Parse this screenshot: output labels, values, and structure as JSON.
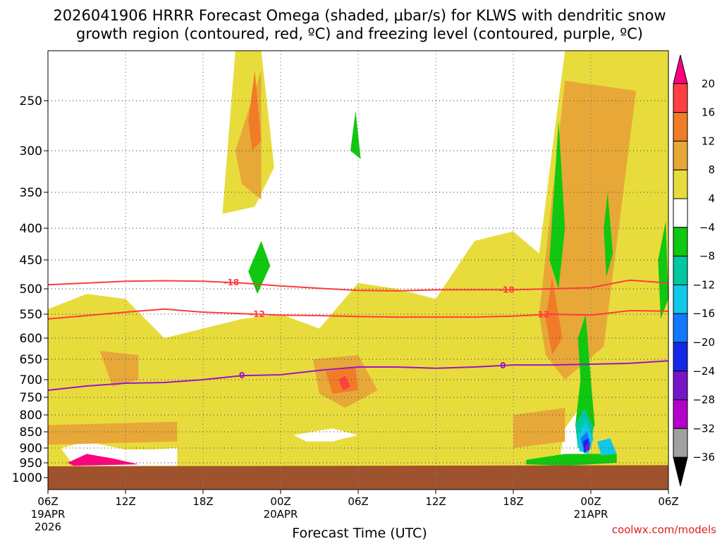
{
  "chart_data": {
    "type": "heatmap",
    "title_line1": "2026041906 HRRR Forecast Omega (shaded, μbar/s) for KLWS with dendritic snow",
    "title_line2": "growth region (contoured, red, ºC) and freezing level (contoured, purple, ºC)",
    "xlabel": "Forecast Time (UTC)",
    "watermark": "coolwx.com/models",
    "x_ticks": [
      {
        "hour": 0,
        "label": "06Z",
        "sub1": "19APR",
        "sub2": "2026"
      },
      {
        "hour": 6,
        "label": "12Z",
        "sub1": "",
        "sub2": ""
      },
      {
        "hour": 12,
        "label": "18Z",
        "sub1": "",
        "sub2": ""
      },
      {
        "hour": 18,
        "label": "00Z",
        "sub1": "20APR",
        "sub2": ""
      },
      {
        "hour": 24,
        "label": "06Z",
        "sub1": "",
        "sub2": ""
      },
      {
        "hour": 30,
        "label": "12Z",
        "sub1": "",
        "sub2": ""
      },
      {
        "hour": 36,
        "label": "18Z",
        "sub1": "",
        "sub2": ""
      },
      {
        "hour": 42,
        "label": "00Z",
        "sub1": "21APR",
        "sub2": ""
      },
      {
        "hour": 48,
        "label": "06Z",
        "sub1": "",
        "sub2": ""
      }
    ],
    "y_ticks": [
      250,
      300,
      350,
      400,
      450,
      500,
      550,
      600,
      650,
      700,
      750,
      800,
      850,
      900,
      950,
      1000
    ],
    "xlim": [
      0,
      48
    ],
    "ylim_hpa": [
      1040,
      200
    ],
    "colorbar": {
      "labels": [
        "20",
        "16",
        "12",
        "8",
        "4",
        "−4",
        "−8",
        "−12",
        "−16",
        "−20",
        "−24",
        "−28",
        "−32",
        "−36"
      ],
      "colors": [
        "#ff0080",
        "#ff4040",
        "#f07c28",
        "#e8a838",
        "#e8dc3c",
        "#ffffff",
        "#10c810",
        "#00c8a0",
        "#10c8e8",
        "#1478ff",
        "#1428e8",
        "#7814c8",
        "#b400c8",
        "#a0a0a0",
        "#000000"
      ]
    },
    "terrain": {
      "color": "#a0522d",
      "surface_hpa_start": 962,
      "surface_hpa_end": 958
    },
    "contours": [
      {
        "name": "dendritic-top",
        "label": "-18",
        "color": "#ff3c3c",
        "points": [
          [
            0,
            493
          ],
          [
            3,
            490
          ],
          [
            6,
            487
          ],
          [
            9,
            486
          ],
          [
            12,
            487
          ],
          [
            15,
            490
          ],
          [
            18,
            495
          ],
          [
            21,
            499
          ],
          [
            24,
            503
          ],
          [
            27,
            504
          ],
          [
            30,
            502
          ],
          [
            33,
            502
          ],
          [
            36,
            502
          ],
          [
            39,
            500
          ],
          [
            42,
            498
          ],
          [
            45,
            485
          ],
          [
            48,
            490
          ]
        ],
        "label_hours": [
          14.2,
          35.5
        ]
      },
      {
        "name": "dendritic-bottom",
        "label": "-12",
        "color": "#ff3c3c",
        "points": [
          [
            0,
            560
          ],
          [
            3,
            553
          ],
          [
            6,
            546
          ],
          [
            9,
            540
          ],
          [
            12,
            546
          ],
          [
            15,
            549
          ],
          [
            18,
            552
          ],
          [
            21,
            553
          ],
          [
            24,
            555
          ],
          [
            27,
            556
          ],
          [
            30,
            556
          ],
          [
            33,
            556
          ],
          [
            36,
            554
          ],
          [
            39,
            550
          ],
          [
            42,
            552
          ],
          [
            45,
            543
          ],
          [
            48,
            544
          ]
        ],
        "label_hours": [
          16.2,
          38.2
        ]
      },
      {
        "name": "freezing-level",
        "label": "0",
        "color": "#9c14c8",
        "points": [
          [
            0,
            730
          ],
          [
            3,
            718
          ],
          [
            6,
            710
          ],
          [
            9,
            708
          ],
          [
            12,
            700
          ],
          [
            15,
            690
          ],
          [
            18,
            688
          ],
          [
            21,
            677
          ],
          [
            24,
            669
          ],
          [
            27,
            669
          ],
          [
            30,
            672
          ],
          [
            33,
            669
          ],
          [
            36,
            664
          ],
          [
            39,
            664
          ],
          [
            42,
            662
          ],
          [
            45,
            660
          ],
          [
            48,
            654
          ]
        ],
        "label_hours": [
          15,
          35.2
        ]
      }
    ],
    "shaded_regions": [
      {
        "c": 4,
        "h": [
          [
            0,
            980
          ],
          [
            0,
            540
          ],
          [
            3,
            510
          ],
          [
            6,
            520
          ],
          [
            9,
            600
          ],
          [
            12,
            580
          ],
          [
            15,
            560
          ],
          [
            18,
            550
          ],
          [
            21,
            580
          ],
          [
            24,
            490
          ],
          [
            27,
            500
          ],
          [
            30,
            520
          ],
          [
            33,
            420
          ],
          [
            36,
            405
          ],
          [
            38,
            440
          ],
          [
            39,
            300
          ],
          [
            40,
            200
          ],
          [
            48,
            200
          ],
          [
            48,
            980
          ]
        ]
      },
      {
        "c": 4,
        "h": [
          [
            13.5,
            380
          ],
          [
            14.5,
            200
          ],
          [
            16.5,
            200
          ],
          [
            17.5,
            320
          ],
          [
            16,
            370
          ]
        ]
      },
      {
        "c": 5,
        "h": [
          [
            1,
            900
          ],
          [
            3,
            880
          ],
          [
            6,
            905
          ],
          [
            8,
            905
          ],
          [
            10,
            900
          ],
          [
            10,
            960
          ],
          [
            6,
            960
          ],
          [
            2,
            960
          ]
        ]
      },
      {
        "c": 5,
        "h": [
          [
            19,
            860
          ],
          [
            22,
            840
          ],
          [
            24,
            860
          ],
          [
            22,
            880
          ],
          [
            20,
            880
          ]
        ]
      },
      {
        "c": 5,
        "h": [
          [
            40,
            840
          ],
          [
            41.5,
            760
          ],
          [
            42,
            900
          ],
          [
            41,
            960
          ],
          [
            39.5,
            960
          ]
        ]
      },
      {
        "c": 3,
        "h": [
          [
            14.5,
            300
          ],
          [
            16.5,
            220
          ],
          [
            16.5,
            360
          ],
          [
            15,
            340
          ]
        ]
      },
      {
        "c": 3,
        "h": [
          [
            20.5,
            650
          ],
          [
            24,
            640
          ],
          [
            25.5,
            730
          ],
          [
            23,
            780
          ],
          [
            21,
            740
          ]
        ]
      },
      {
        "c": 3,
        "h": [
          [
            4,
            630
          ],
          [
            7,
            640
          ],
          [
            7,
            700
          ],
          [
            5,
            720
          ]
        ]
      },
      {
        "c": 3,
        "h": [
          [
            38,
            550
          ],
          [
            40,
            230
          ],
          [
            45.5,
            240
          ],
          [
            43,
            620
          ],
          [
            40,
            700
          ],
          [
            38.5,
            640
          ]
        ]
      },
      {
        "c": 3,
        "h": [
          [
            0,
            830
          ],
          [
            10,
            820
          ],
          [
            10,
            880
          ],
          [
            0,
            890
          ]
        ]
      },
      {
        "c": 3,
        "h": [
          [
            36,
            800
          ],
          [
            40,
            780
          ],
          [
            40,
            880
          ],
          [
            36,
            900
          ]
        ]
      },
      {
        "c": 2,
        "h": [
          [
            15.5,
            270
          ],
          [
            16,
            220
          ],
          [
            16.5,
            290
          ],
          [
            15.8,
            300
          ]
        ]
      },
      {
        "c": 2,
        "h": [
          [
            21.5,
            680
          ],
          [
            23.8,
            670
          ],
          [
            24,
            730
          ],
          [
            22,
            740
          ]
        ]
      },
      {
        "c": 2,
        "h": [
          [
            38.5,
            560
          ],
          [
            39,
            480
          ],
          [
            39.8,
            600
          ],
          [
            39,
            640
          ]
        ]
      },
      {
        "c": 1,
        "h": [
          [
            22.5,
            700
          ],
          [
            23,
            690
          ],
          [
            23.4,
            720
          ],
          [
            22.8,
            730
          ]
        ]
      },
      {
        "c": 0,
        "h": [
          [
            1.5,
            950
          ],
          [
            3,
            920
          ],
          [
            5,
            935
          ],
          [
            7,
            955
          ],
          [
            2,
            960
          ]
        ]
      },
      {
        "c": 6,
        "h": [
          [
            15.5,
            470
          ],
          [
            16.5,
            420
          ],
          [
            17.2,
            460
          ],
          [
            16.2,
            510
          ]
        ]
      },
      {
        "c": 6,
        "h": [
          [
            23.4,
            300
          ],
          [
            23.8,
            260
          ],
          [
            24.2,
            310
          ]
        ]
      },
      {
        "c": 6,
        "h": [
          [
            38.8,
            450
          ],
          [
            39.5,
            270
          ],
          [
            40,
            400
          ],
          [
            39.5,
            500
          ]
        ]
      },
      {
        "c": 6,
        "h": [
          [
            43,
            400
          ],
          [
            43.3,
            350
          ],
          [
            43.7,
            440
          ],
          [
            43.2,
            480
          ]
        ]
      },
      {
        "c": 6,
        "h": [
          [
            47.2,
            450
          ],
          [
            47.8,
            390
          ],
          [
            48,
            520
          ],
          [
            47.4,
            560
          ]
        ]
      },
      {
        "c": 6,
        "h": [
          [
            37,
            940
          ],
          [
            40,
            920
          ],
          [
            44,
            920
          ],
          [
            44,
            950
          ],
          [
            40,
            960
          ],
          [
            37,
            955
          ]
        ]
      },
      {
        "c": 6,
        "h": [
          [
            41,
            600
          ],
          [
            41.6,
            550
          ],
          [
            42,
            700
          ],
          [
            42.3,
            830
          ],
          [
            41.5,
            900
          ],
          [
            40.8,
            830
          ],
          [
            41.2,
            700
          ]
        ]
      },
      {
        "c": 7,
        "h": [
          [
            40.8,
            830
          ],
          [
            41.5,
            780
          ],
          [
            42.2,
            840
          ],
          [
            42,
            900
          ],
          [
            41,
            900
          ]
        ]
      },
      {
        "c": 8,
        "h": [
          [
            41,
            860
          ],
          [
            41.6,
            820
          ],
          [
            42.2,
            870
          ],
          [
            41.8,
            920
          ],
          [
            41.1,
            910
          ]
        ]
      },
      {
        "c": 8,
        "h": [
          [
            42.5,
            880
          ],
          [
            43.5,
            870
          ],
          [
            44,
            920
          ],
          [
            42.8,
            925
          ]
        ]
      },
      {
        "c": 9,
        "h": [
          [
            41.2,
            870
          ],
          [
            41.7,
            850
          ],
          [
            42,
            890
          ],
          [
            41.5,
            920
          ]
        ]
      },
      {
        "c": 10,
        "h": [
          [
            41.4,
            880
          ],
          [
            41.8,
            870
          ],
          [
            41.9,
            905
          ],
          [
            41.5,
            915
          ]
        ]
      },
      {
        "c": 12,
        "h": [
          [
            41.6,
            890
          ],
          [
            41.8,
            885
          ],
          [
            41.8,
            905
          ],
          [
            41.6,
            910
          ]
        ]
      }
    ]
  }
}
